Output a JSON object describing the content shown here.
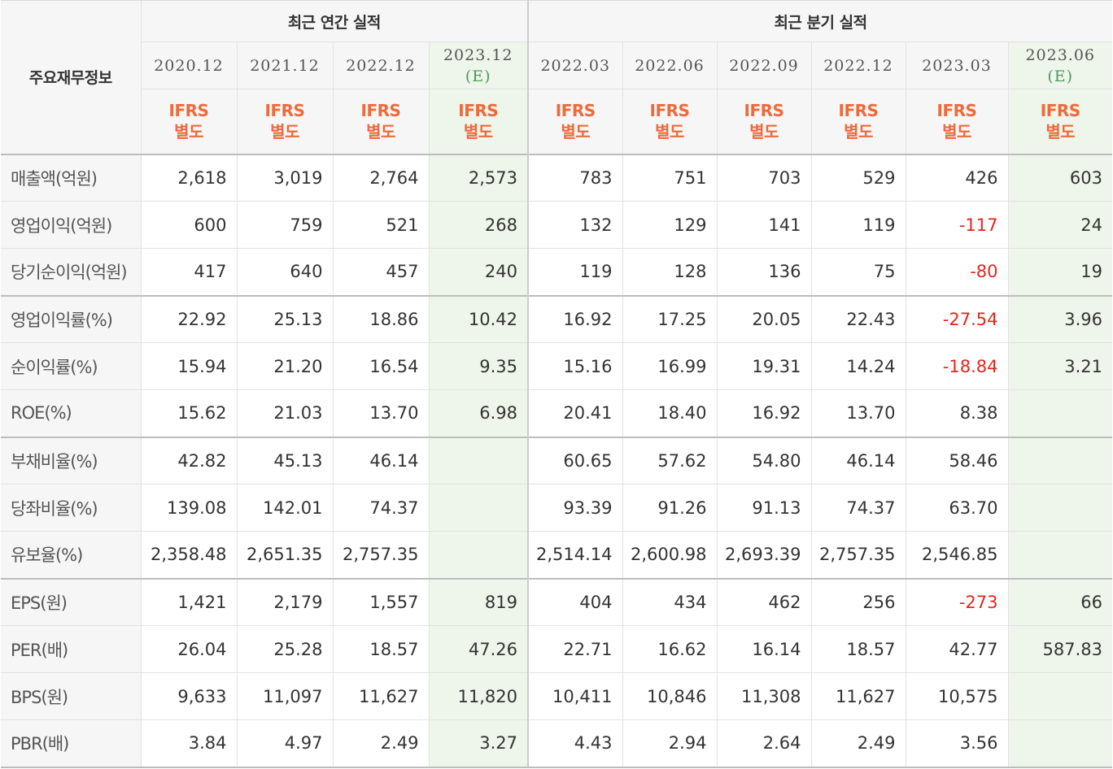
{
  "header": {
    "row_label": "주요재무정보",
    "groups": {
      "annual": "최근 연간 실적",
      "quarterly": "최근 분기 실적"
    },
    "periods": [
      {
        "date": "2020.12",
        "est": "",
        "std_line1": "IFRS",
        "std_line2": "별도"
      },
      {
        "date": "2021.12",
        "est": "",
        "std_line1": "IFRS",
        "std_line2": "별도"
      },
      {
        "date": "2022.12",
        "est": "",
        "std_line1": "IFRS",
        "std_line2": "별도"
      },
      {
        "date": "2023.12",
        "est": "(E)",
        "std_line1": "IFRS",
        "std_line2": "별도"
      },
      {
        "date": "2022.03",
        "est": "",
        "std_line1": "IFRS",
        "std_line2": "별도"
      },
      {
        "date": "2022.06",
        "est": "",
        "std_line1": "IFRS",
        "std_line2": "별도"
      },
      {
        "date": "2022.09",
        "est": "",
        "std_line1": "IFRS",
        "std_line2": "별도"
      },
      {
        "date": "2022.12",
        "est": "",
        "std_line1": "IFRS",
        "std_line2": "별도"
      },
      {
        "date": "2023.03",
        "est": "",
        "std_line1": "IFRS",
        "std_line2": "별도"
      },
      {
        "date": "2023.06",
        "est": "(E)",
        "std_line1": "IFRS",
        "std_line2": "별도"
      }
    ]
  },
  "rows": [
    {
      "label": "매출액(억원)",
      "values": [
        "2,618",
        "3,019",
        "2,764",
        "2,573",
        "783",
        "751",
        "703",
        "529",
        "426",
        "603"
      ]
    },
    {
      "label": "영업이익(억원)",
      "values": [
        "600",
        "759",
        "521",
        "268",
        "132",
        "129",
        "141",
        "119",
        "-117",
        "24"
      ]
    },
    {
      "label": "당기순이익(억원)",
      "values": [
        "417",
        "640",
        "457",
        "240",
        "119",
        "128",
        "136",
        "75",
        "-80",
        "19"
      ]
    },
    {
      "label": "영업이익률(%)",
      "values": [
        "22.92",
        "25.13",
        "18.86",
        "10.42",
        "16.92",
        "17.25",
        "20.05",
        "22.43",
        "-27.54",
        "3.96"
      ]
    },
    {
      "label": "순이익률(%)",
      "values": [
        "15.94",
        "21.20",
        "16.54",
        "9.35",
        "15.16",
        "16.99",
        "19.31",
        "14.24",
        "-18.84",
        "3.21"
      ]
    },
    {
      "label": "ROE(%)",
      "values": [
        "15.62",
        "21.03",
        "13.70",
        "6.98",
        "20.41",
        "18.40",
        "16.92",
        "13.70",
        "8.38",
        ""
      ]
    },
    {
      "label": "부채비율(%)",
      "values": [
        "42.82",
        "45.13",
        "46.14",
        "",
        "60.65",
        "57.62",
        "54.80",
        "46.14",
        "58.46",
        ""
      ]
    },
    {
      "label": "당좌비율(%)",
      "values": [
        "139.08",
        "142.01",
        "74.37",
        "",
        "93.39",
        "91.26",
        "91.13",
        "74.37",
        "63.70",
        ""
      ]
    },
    {
      "label": "유보율(%)",
      "values": [
        "2,358.48",
        "2,651.35",
        "2,757.35",
        "",
        "2,514.14",
        "2,600.98",
        "2,693.39",
        "2,757.35",
        "2,546.85",
        ""
      ]
    },
    {
      "label": "EPS(원)",
      "values": [
        "1,421",
        "2,179",
        "1,557",
        "819",
        "404",
        "434",
        "462",
        "256",
        "-273",
        "66"
      ]
    },
    {
      "label": "PER(배)",
      "values": [
        "26.04",
        "25.28",
        "18.57",
        "47.26",
        "22.71",
        "16.62",
        "16.14",
        "18.57",
        "42.77",
        "587.83"
      ]
    },
    {
      "label": "BPS(원)",
      "values": [
        "9,633",
        "11,097",
        "11,627",
        "11,820",
        "10,411",
        "10,846",
        "11,308",
        "11,627",
        "10,575",
        ""
      ]
    },
    {
      "label": "PBR(배)",
      "values": [
        "3.84",
        "4.97",
        "2.49",
        "3.27",
        "4.43",
        "2.94",
        "2.64",
        "2.49",
        "3.56",
        ""
      ]
    }
  ],
  "colors": {
    "negative": "#e3261d",
    "ifrs": "#ee6a3a",
    "estimate_bg": "#eef5ea",
    "estimate_mark": "#4a9a5a"
  }
}
